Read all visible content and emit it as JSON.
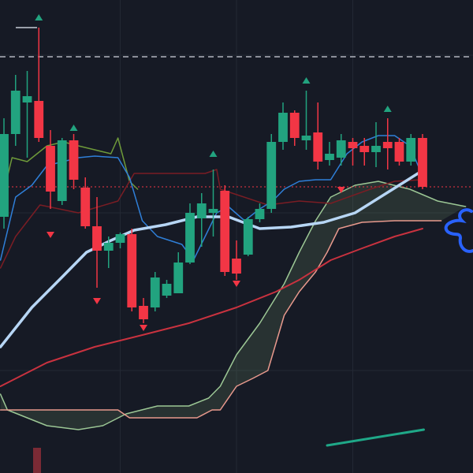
{
  "chart_data": {
    "type": "candlestick",
    "background": "#161a25",
    "xlim": [
      -0.34,
      40.34
    ],
    "ylim": [
      0,
      600
    ],
    "grid": true,
    "xticks": [
      10,
      20,
      30
    ],
    "yticks": [
      130,
      330,
      530
    ],
    "up_color": "#22a37f",
    "down_color": "#f23645",
    "open": [
      325,
      430,
      470,
      472,
      415,
      345,
      422,
      362,
      313,
      282,
      292,
      303,
      212,
      210,
      225,
      228,
      267,
      323,
      330,
      358,
      272,
      277,
      322,
      335,
      420,
      457,
      422,
      432,
      397,
      400,
      420,
      415,
      407,
      420,
      420,
      395,
      425
    ],
    "close": [
      430,
      485,
      478,
      425,
      357,
      422,
      372,
      313,
      282,
      292,
      303,
      210,
      195,
      248,
      240,
      267,
      330,
      342,
      335,
      255,
      253,
      322,
      335,
      420,
      457,
      425,
      428,
      395,
      405,
      422,
      412,
      407,
      415,
      412,
      395,
      425,
      363
    ],
    "high": [
      450,
      505,
      510,
      565,
      435,
      425,
      430,
      375,
      350,
      300,
      305,
      310,
      222,
      255,
      245,
      280,
      342,
      355,
      385,
      365,
      295,
      325,
      342,
      430,
      470,
      460,
      485,
      470,
      420,
      430,
      425,
      425,
      445,
      450,
      425,
      430,
      430
    ],
    "low": [
      310,
      415,
      400,
      420,
      335,
      340,
      360,
      310,
      235,
      260,
      285,
      205,
      190,
      205,
      222,
      228,
      265,
      287,
      300,
      250,
      245,
      275,
      318,
      330,
      410,
      415,
      410,
      385,
      390,
      390,
      390,
      390,
      388,
      385,
      390,
      390,
      360
    ],
    "hlines": [
      {
        "value": 528,
        "color": "#b2b5be",
        "dash": "7 5",
        "width": 1.5
      },
      {
        "value": 363,
        "color": "#f23645",
        "dash": "2 3",
        "width": 1
      }
    ],
    "cloud": {
      "fill": "rgba(120,160,110,0.18)",
      "upper": {
        "color": "#9cc795",
        "x": [
          -0.3,
          0.3,
          3.7,
          6.4,
          8.5,
          10.5,
          13.2,
          15.9,
          17.6,
          18.6,
          20.0,
          22.0,
          24.1,
          25.4,
          26.8,
          28.1,
          30.2,
          32.2,
          34.9,
          37.3,
          39.7
        ],
        "values": [
          100,
          80,
          60,
          55,
          60,
          75,
          85,
          85,
          95,
          110,
          150,
          190,
          240,
          280,
          320,
          350,
          365,
          370,
          360,
          345,
          338
        ]
      },
      "lower": {
        "color": "#e8998d",
        "x": [
          -0.3,
          9.8,
          10.8,
          13.2,
          16.6,
          17.9,
          18.6,
          20.0,
          21.4,
          22.7,
          24.1,
          25.4,
          26.8,
          27.8,
          28.8,
          30.8,
          33.6,
          36.3,
          37.6
        ],
        "values": [
          80,
          80,
          70,
          70,
          70,
          80,
          80,
          110,
          120,
          130,
          200,
          230,
          255,
          280,
          310,
          318,
          320,
          320,
          320
        ]
      }
    },
    "series": [
      {
        "color": "#6e9a3a",
        "width": 1.5,
        "x": [
          -0.3,
          0.7,
          2.0,
          3.7,
          5.1,
          6.4,
          7.8,
          9.2,
          9.8,
          10.8,
          11.5
        ],
        "values": [
          340,
          400,
          395,
          415,
          420,
          415,
          410,
          405,
          425,
          370,
          360
        ]
      },
      {
        "color": "#7a1d24",
        "width": 1.5,
        "x": [
          -0.3,
          1.0,
          3.1,
          6.4,
          9.8,
          11.2,
          17.3,
          18.3,
          18.6,
          22.7,
          25.4,
          28.1,
          31.5,
          33.6,
          35.9
        ],
        "values": [
          260,
          300,
          340,
          330,
          345,
          380,
          380,
          385,
          360,
          340,
          345,
          342,
          360,
          370,
          372
        ]
      },
      {
        "color": "#c9323f",
        "width": 2,
        "x": [
          -0.3,
          3.7,
          7.8,
          11.9,
          15.9,
          20.0,
          23.4,
          25.4,
          28.1,
          30.8,
          33.6,
          36.0
        ],
        "values": [
          110,
          140,
          160,
          175,
          190,
          210,
          230,
          245,
          270,
          285,
          300,
          310
        ]
      },
      {
        "color": "#2f7fd8",
        "width": 1.5,
        "x": [
          -0.3,
          1.0,
          2.4,
          3.7,
          5.1,
          6.4,
          7.8,
          9.8,
          10.8,
          11.9,
          13.2,
          15.3,
          16.3,
          17.3,
          18.3,
          19.3,
          20.7,
          22.0,
          23.1,
          24.1,
          25.4,
          26.8,
          28.1,
          29.5,
          30.8,
          32.2,
          33.6,
          34.9,
          35.9
        ],
        "values": [
          270,
          350,
          365,
          390,
          395,
          400,
          402,
          400,
          375,
          320,
          300,
          290,
          270,
          300,
          330,
          338,
          320,
          335,
          345,
          360,
          370,
          372,
          372,
          405,
          420,
          428,
          428,
          415,
          380
        ]
      },
      {
        "color": "#b7d6f5",
        "width": 3.5,
        "x": [
          -0.3,
          2.4,
          5.1,
          7.1,
          9.2,
          11.2,
          13.9,
          16.6,
          19.3,
          22.0,
          24.7,
          27.5,
          30.2,
          32.9,
          35.6
        ],
        "values": [
          160,
          210,
          250,
          280,
          295,
          308,
          315,
          325,
          325,
          310,
          312,
          318,
          330,
          355,
          380
        ]
      },
      {
        "color": "#1fa888",
        "width": 3,
        "x": [
          27.8,
          36.1
        ],
        "values": [
          35,
          55
        ]
      }
    ],
    "signals_up": {
      "color": "#22a37f",
      "x": [
        3,
        6,
        18,
        26,
        33
      ],
      "values": [
        578,
        438,
        405,
        498,
        462
      ]
    },
    "signals_down": {
      "color": "#f23645",
      "x": [
        4,
        8,
        12,
        20,
        29
      ],
      "values": [
        302,
        218,
        184,
        240,
        359
      ]
    }
  }
}
